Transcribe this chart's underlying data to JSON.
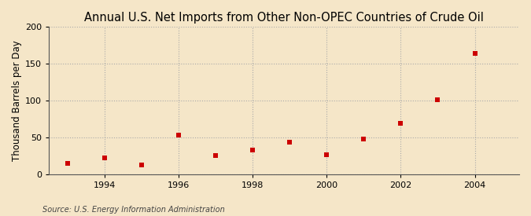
{
  "title": "Annual U.S. Net Imports from Other Non-OPEC Countries of Crude Oil",
  "ylabel": "Thousand Barrels per Day",
  "source": "Source: U.S. Energy Information Administration",
  "background_color": "#f5e6c8",
  "plot_background_color": "#f5e6c8",
  "years": [
    1993,
    1994,
    1995,
    1996,
    1997,
    1998,
    1999,
    2000,
    2001,
    2002,
    2003,
    2004
  ],
  "values": [
    15,
    22,
    12,
    53,
    25,
    33,
    43,
    26,
    48,
    69,
    101,
    164
  ],
  "marker_color": "#cc0000",
  "marker": "s",
  "marker_size": 5,
  "ylim": [
    0,
    200
  ],
  "yticks": [
    0,
    50,
    100,
    150,
    200
  ],
  "xlim": [
    1992.5,
    2005.2
  ],
  "xticks": [
    1994,
    1996,
    1998,
    2000,
    2002,
    2004
  ],
  "grid_color": "#aaaaaa",
  "grid_style": ":",
  "title_fontsize": 10.5,
  "label_fontsize": 8.5,
  "tick_fontsize": 8,
  "source_fontsize": 7
}
